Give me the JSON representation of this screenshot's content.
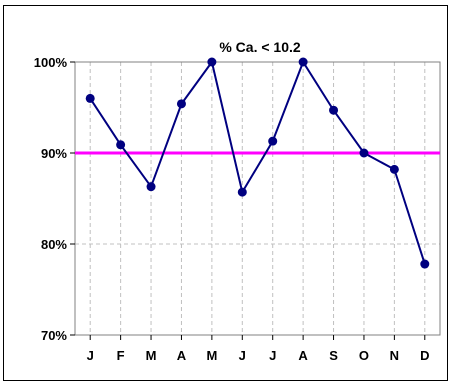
{
  "chart_data": {
    "type": "line",
    "title": "%  Ca. < 10.2",
    "categories": [
      "J",
      "F",
      "M",
      "A",
      "M",
      "J",
      "J",
      "A",
      "S",
      "O",
      "N",
      "D"
    ],
    "series": [
      {
        "values": [
          96.0,
          90.9,
          86.3,
          95.4,
          100.0,
          85.7,
          91.3,
          100.0,
          94.7,
          90.0,
          88.2,
          77.8
        ],
        "color": "#000080"
      }
    ],
    "reference_line": {
      "value": 90,
      "color": "#ff00ff"
    },
    "ylim": [
      70,
      100
    ],
    "yticks": [
      70,
      80,
      90,
      100
    ],
    "ytick_labels": [
      "70%",
      "80%",
      "90%",
      "100%"
    ],
    "grid": true
  }
}
